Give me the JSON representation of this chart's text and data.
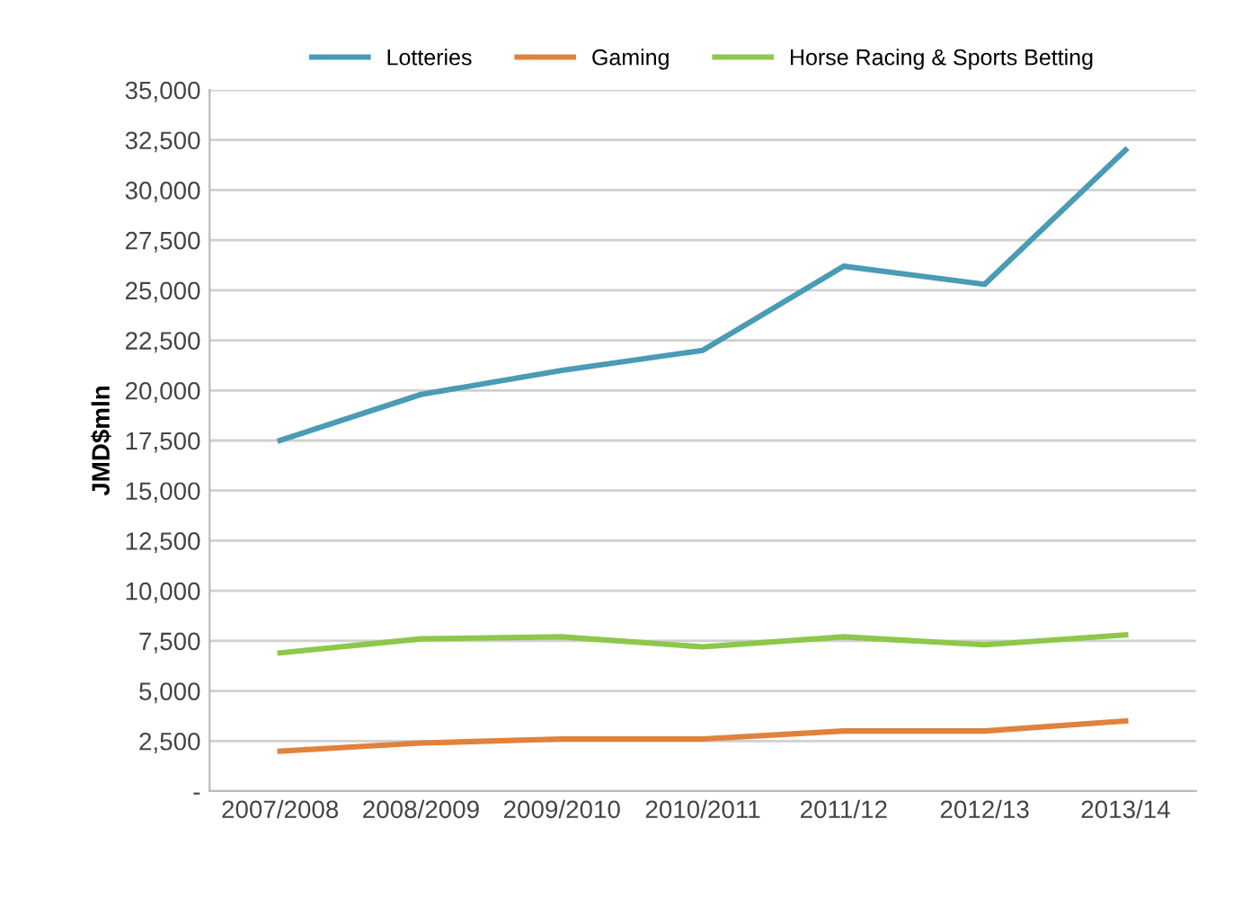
{
  "chart_data": {
    "type": "line",
    "ylabel": "JMD$mln",
    "categories": [
      "2007/2008",
      "2008/2009",
      "2009/2010",
      "2010/2011",
      "2011/12",
      "2012/13",
      "2013/14"
    ],
    "series": [
      {
        "name": "Lotteries",
        "color": "#4a9bb5",
        "values": [
          17500,
          19800,
          21000,
          22000,
          26200,
          25300,
          32000
        ]
      },
      {
        "name": "Gaming",
        "color": "#e0823c",
        "values": [
          2000,
          2400,
          2600,
          2600,
          3000,
          3000,
          3500
        ]
      },
      {
        "name": "Horse Racing & Sports Betting",
        "color": "#8cc84b",
        "values": [
          6900,
          7600,
          7700,
          7200,
          7700,
          7300,
          7800
        ]
      }
    ],
    "ylim": [
      0,
      35000
    ],
    "yticks": [
      {
        "value": 0,
        "label": "-"
      },
      {
        "value": 2500,
        "label": "2,500"
      },
      {
        "value": 5000,
        "label": "5,000"
      },
      {
        "value": 7500,
        "label": "7,500"
      },
      {
        "value": 10000,
        "label": "10,000"
      },
      {
        "value": 12500,
        "label": "12,500"
      },
      {
        "value": 15000,
        "label": "15,000"
      },
      {
        "value": 17500,
        "label": "17,500"
      },
      {
        "value": 20000,
        "label": "20,000"
      },
      {
        "value": 22500,
        "label": "22,500"
      },
      {
        "value": 25000,
        "label": "25,000"
      },
      {
        "value": 27500,
        "label": "27,500"
      },
      {
        "value": 30000,
        "label": "30,000"
      },
      {
        "value": 32500,
        "label": "32,500"
      },
      {
        "value": 35000,
        "label": "35,000"
      }
    ],
    "grid": "y",
    "legend": "top",
    "marker": "none",
    "line_style": "solid"
  }
}
